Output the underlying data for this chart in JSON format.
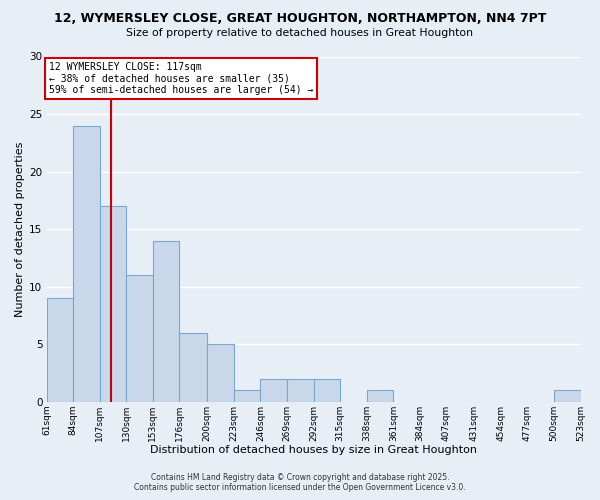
{
  "title1": "12, WYMERSLEY CLOSE, GREAT HOUGHTON, NORTHAMPTON, NN4 7PT",
  "title2": "Size of property relative to detached houses in Great Houghton",
  "xlabel": "Distribution of detached houses by size in Great Houghton",
  "ylabel": "Number of detached properties",
  "bar_color": "#c8d8ea",
  "bar_edge_color": "#7aa8cc",
  "bg_color": "#e8eef6",
  "grid_color": "#ffffff",
  "bins": [
    61,
    84,
    107,
    130,
    153,
    176,
    200,
    223,
    246,
    269,
    292,
    315,
    338,
    361,
    384,
    407,
    431,
    454,
    477,
    500,
    523
  ],
  "counts": [
    9,
    24,
    17,
    11,
    14,
    6,
    5,
    1,
    2,
    2,
    2,
    0,
    1,
    0,
    0,
    0,
    0,
    0,
    0,
    1
  ],
  "vline_x": 117,
  "vline_color": "#cc0000",
  "ylim": [
    0,
    30
  ],
  "yticks": [
    0,
    5,
    10,
    15,
    20,
    25,
    30
  ],
  "annotation_text": "12 WYMERSLEY CLOSE: 117sqm\n← 38% of detached houses are smaller (35)\n59% of semi-detached houses are larger (54) →",
  "annotation_box_color": "#ffffff",
  "annotation_box_edge": "#cc0000",
  "footer1": "Contains HM Land Registry data © Crown copyright and database right 2025.",
  "footer2": "Contains public sector information licensed under the Open Government Licence v3.0.",
  "tick_labels": [
    "61sqm",
    "84sqm",
    "107sqm",
    "130sqm",
    "153sqm",
    "176sqm",
    "200sqm",
    "223sqm",
    "246sqm",
    "269sqm",
    "292sqm",
    "315sqm",
    "338sqm",
    "361sqm",
    "384sqm",
    "407sqm",
    "431sqm",
    "454sqm",
    "477sqm",
    "500sqm",
    "523sqm"
  ]
}
